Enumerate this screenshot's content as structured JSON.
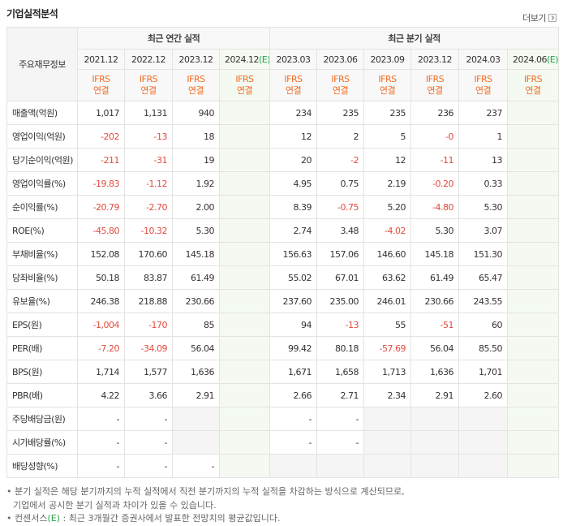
{
  "header": {
    "title": "기업실적분석",
    "more": "더보기"
  },
  "table": {
    "corner": "주요재무정보",
    "groups": [
      {
        "label": "최근 연간 실적",
        "span": 4
      },
      {
        "label": "최근 분기 실적",
        "span": 6
      }
    ],
    "columns": [
      {
        "period": "2021.12",
        "standard": "IFRS",
        "scope": "연결"
      },
      {
        "period": "2022.12",
        "standard": "IFRS",
        "scope": "연결"
      },
      {
        "period": "2023.12",
        "standard": "IFRS",
        "scope": "연결"
      },
      {
        "period": "2024.12",
        "estimate": "(E)",
        "standard": "IFRS",
        "scope": "연결"
      },
      {
        "period": "2023.03",
        "standard": "IFRS",
        "scope": "연결"
      },
      {
        "period": "2023.06",
        "standard": "IFRS",
        "scope": "연결"
      },
      {
        "period": "2023.09",
        "standard": "IFRS",
        "scope": "연결"
      },
      {
        "period": "2023.12",
        "standard": "IFRS",
        "scope": "연결"
      },
      {
        "period": "2024.03",
        "standard": "IFRS",
        "scope": "연결"
      },
      {
        "period": "2024.06",
        "estimate": "(E)",
        "standard": "IFRS",
        "scope": "연결"
      }
    ],
    "rows": [
      {
        "label": "매출액(억원)",
        "values": [
          "1,017",
          "1,131",
          "940",
          null,
          "234",
          "235",
          "235",
          "236",
          "237",
          null
        ]
      },
      {
        "label": "영업이익(억원)",
        "values": [
          "-202",
          "-13",
          "18",
          null,
          "12",
          "2",
          "5",
          "-0",
          "1",
          null
        ]
      },
      {
        "label": "당기순이익(억원)",
        "values": [
          "-211",
          "-31",
          "19",
          null,
          "20",
          "-2",
          "12",
          "-11",
          "13",
          null
        ]
      },
      {
        "label": "영업이익률(%)",
        "values": [
          "-19.83",
          "-1.12",
          "1.92",
          null,
          "4.95",
          "0.75",
          "2.19",
          "-0.20",
          "0.33",
          null
        ]
      },
      {
        "label": "순이익률(%)",
        "values": [
          "-20.79",
          "-2.70",
          "2.00",
          null,
          "8.39",
          "-0.75",
          "5.20",
          "-4.80",
          "5.30",
          null
        ]
      },
      {
        "label": "ROE(%)",
        "values": [
          "-45.80",
          "-10.32",
          "5.30",
          null,
          "2.74",
          "3.48",
          "-4.02",
          "5.30",
          "3.07",
          null
        ]
      },
      {
        "label": "부채비율(%)",
        "values": [
          "152.08",
          "170.60",
          "145.18",
          null,
          "156.63",
          "157.06",
          "146.60",
          "145.18",
          "151.30",
          null
        ]
      },
      {
        "label": "당좌비율(%)",
        "values": [
          "50.18",
          "83.87",
          "61.49",
          null,
          "55.02",
          "67.01",
          "63.62",
          "61.49",
          "65.47",
          null
        ]
      },
      {
        "label": "유보율(%)",
        "values": [
          "246.38",
          "218.88",
          "230.66",
          null,
          "237.60",
          "235.00",
          "246.01",
          "230.66",
          "243.55",
          null
        ]
      },
      {
        "label": "EPS(원)",
        "values": [
          "-1,004",
          "-170",
          "85",
          null,
          "94",
          "-13",
          "55",
          "-51",
          "60",
          null
        ]
      },
      {
        "label": "PER(배)",
        "values": [
          "-7.20",
          "-34.09",
          "56.04",
          null,
          "99.42",
          "80.18",
          "-57.69",
          "56.04",
          "85.50",
          null
        ]
      },
      {
        "label": "BPS(원)",
        "values": [
          "1,714",
          "1,577",
          "1,636",
          null,
          "1,671",
          "1,658",
          "1,713",
          "1,636",
          "1,701",
          null
        ]
      },
      {
        "label": "PBR(배)",
        "values": [
          "4.22",
          "3.66",
          "2.91",
          null,
          "2.66",
          "2.71",
          "2.34",
          "2.91",
          "2.60",
          null
        ]
      },
      {
        "label": "주당배당금(원)",
        "values": [
          "-",
          "-",
          null,
          null,
          "-",
          "-",
          null,
          null,
          null,
          null
        ]
      },
      {
        "label": "시가배당률(%)",
        "values": [
          "-",
          "-",
          null,
          null,
          "-",
          "-",
          null,
          null,
          null,
          null
        ]
      },
      {
        "label": "배당성향(%)",
        "values": [
          "-",
          "-",
          "-",
          null,
          null,
          null,
          null,
          null,
          null,
          null
        ]
      }
    ]
  },
  "notes": {
    "quarterly": [
      "분기 실적은 해당 분기까지의 누적 실적에서 직전 분기까지의 누적 실적을 차감하는 방식으로 계산되므로,",
      "기업에서 공시한 분기 실적과 차이가 있을 수 있습니다."
    ],
    "consensus": {
      "term": "컨센서스",
      "mark": "(E)",
      "text": " : 최근 3개월간 증권사에서 발표한 전망치의 평균값입니다."
    }
  }
}
